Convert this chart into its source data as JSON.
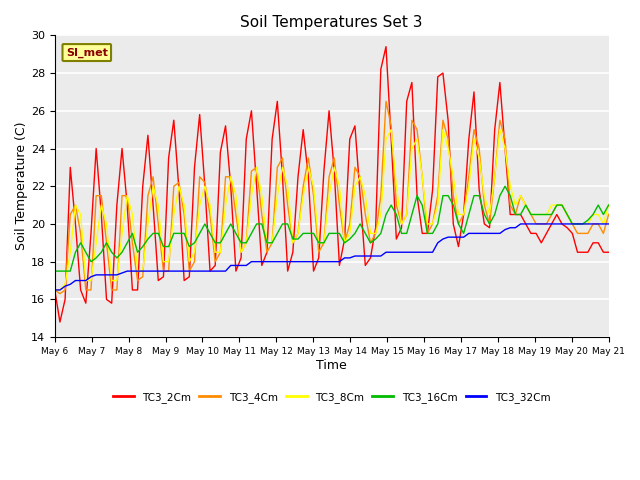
{
  "title": "Soil Temperatures Set 3",
  "xlabel": "Time",
  "ylabel": "Soil Temperature (C)",
  "ylim": [
    14,
    30
  ],
  "xlim": [
    0,
    15
  ],
  "yticks": [
    14,
    16,
    18,
    20,
    22,
    24,
    26,
    28,
    30
  ],
  "xtick_labels": [
    "May 6",
    "May 7",
    "May 8",
    "May 9",
    "May 10",
    "May 11",
    "May 12",
    "May 13",
    "May 14",
    "May 15",
    "May 16",
    "May 17",
    "May 18",
    "May 19",
    "May 20",
    "May 21"
  ],
  "annotation_text": "SI_met",
  "colors": {
    "TC3_2Cm": "#FF0000",
    "TC3_4Cm": "#FF8C00",
    "TC3_8Cm": "#FFFF00",
    "TC3_16Cm": "#00BB00",
    "TC3_32Cm": "#0000FF"
  },
  "legend_labels": [
    "TC3_2Cm",
    "TC3_4Cm",
    "TC3_8Cm",
    "TC3_16Cm",
    "TC3_32Cm"
  ],
  "background_color": "#EBEBEB",
  "title_fontsize": 11,
  "TC3_2Cm": [
    16.5,
    14.8,
    16.0,
    23.0,
    20.0,
    16.5,
    15.8,
    19.5,
    24.0,
    20.5,
    16.0,
    15.8,
    21.0,
    24.0,
    21.0,
    16.5,
    16.5,
    22.0,
    24.7,
    21.0,
    17.0,
    17.2,
    23.5,
    25.5,
    21.8,
    17.0,
    17.2,
    23.0,
    25.8,
    22.0,
    17.5,
    17.8,
    23.8,
    25.2,
    22.0,
    17.5,
    18.2,
    24.5,
    26.0,
    22.0,
    17.8,
    18.5,
    24.5,
    26.5,
    22.5,
    17.5,
    18.5,
    22.5,
    25.0,
    22.5,
    17.5,
    18.2,
    22.8,
    26.0,
    22.8,
    17.8,
    19.2,
    24.5,
    25.2,
    21.5,
    17.8,
    18.2,
    19.8,
    28.2,
    29.4,
    24.5,
    19.2,
    19.8,
    26.5,
    27.5,
    21.5,
    19.5,
    19.5,
    21.8,
    27.8,
    28.0,
    25.5,
    20.0,
    18.8,
    20.5,
    24.5,
    27.0,
    21.8,
    20.0,
    19.8,
    25.0,
    27.5,
    24.0,
    20.5,
    20.5,
    20.5,
    20.0,
    19.5,
    19.5,
    19.0,
    19.5,
    20.0,
    20.5,
    20.0,
    19.8,
    19.5,
    18.5,
    18.5,
    18.5,
    19.0,
    19.0,
    18.5,
    18.5
  ],
  "TC3_4Cm": [
    16.5,
    16.3,
    16.5,
    20.5,
    21.0,
    19.5,
    16.5,
    16.5,
    21.5,
    21.5,
    19.0,
    16.5,
    16.5,
    21.5,
    21.5,
    19.0,
    17.0,
    17.2,
    21.5,
    22.5,
    20.0,
    17.5,
    17.5,
    22.0,
    22.2,
    20.5,
    17.5,
    18.0,
    22.5,
    22.2,
    20.5,
    18.0,
    18.5,
    22.5,
    22.5,
    20.5,
    18.5,
    19.0,
    22.8,
    23.0,
    20.5,
    18.5,
    19.0,
    23.0,
    23.5,
    21.0,
    19.0,
    19.5,
    22.0,
    23.5,
    21.5,
    18.5,
    19.0,
    22.5,
    23.5,
    21.0,
    19.0,
    20.0,
    23.0,
    22.5,
    20.5,
    19.0,
    19.5,
    21.5,
    26.5,
    25.2,
    21.0,
    20.0,
    20.5,
    25.5,
    25.0,
    22.5,
    19.5,
    20.0,
    21.5,
    25.5,
    24.5,
    21.5,
    20.0,
    20.5,
    22.5,
    25.0,
    24.0,
    21.0,
    20.0,
    22.5,
    25.5,
    24.5,
    21.0,
    20.5,
    21.5,
    21.0,
    20.5,
    20.0,
    20.0,
    20.0,
    20.5,
    21.0,
    21.0,
    20.5,
    20.0,
    19.5,
    19.5,
    19.5,
    20.0,
    20.0,
    19.5,
    20.5
  ],
  "TC3_8Cm": [
    16.5,
    16.5,
    16.8,
    18.5,
    21.0,
    20.5,
    17.0,
    17.0,
    19.0,
    21.0,
    20.0,
    17.0,
    17.0,
    19.5,
    21.5,
    20.5,
    17.5,
    17.5,
    20.0,
    22.0,
    21.0,
    18.0,
    18.0,
    20.5,
    22.0,
    21.0,
    18.0,
    18.5,
    21.0,
    22.0,
    21.0,
    18.5,
    18.5,
    21.0,
    22.5,
    21.5,
    18.5,
    19.0,
    21.5,
    23.0,
    21.5,
    19.0,
    19.0,
    21.5,
    23.0,
    22.0,
    19.0,
    19.5,
    21.5,
    23.0,
    22.0,
    19.0,
    19.0,
    21.5,
    23.0,
    22.0,
    19.0,
    19.5,
    22.0,
    22.5,
    21.5,
    19.5,
    19.5,
    20.5,
    24.5,
    25.0,
    22.0,
    20.0,
    20.5,
    24.0,
    24.5,
    22.5,
    20.0,
    20.0,
    21.0,
    25.0,
    24.0,
    22.5,
    20.5,
    20.5,
    22.0,
    24.5,
    23.5,
    21.5,
    20.5,
    22.5,
    25.0,
    24.0,
    22.0,
    21.0,
    21.5,
    21.0,
    20.5,
    20.5,
    20.5,
    20.5,
    21.0,
    21.0,
    21.0,
    20.5,
    20.0,
    20.0,
    20.0,
    20.0,
    20.5,
    20.5,
    20.0,
    21.0
  ],
  "TC3_16Cm": [
    17.5,
    17.5,
    17.5,
    17.5,
    18.5,
    19.0,
    18.5,
    18.0,
    18.2,
    18.5,
    19.0,
    18.5,
    18.2,
    18.5,
    19.0,
    19.5,
    18.5,
    18.8,
    19.2,
    19.5,
    19.5,
    18.8,
    18.8,
    19.5,
    19.5,
    19.5,
    18.8,
    19.0,
    19.5,
    20.0,
    19.5,
    19.0,
    19.0,
    19.5,
    20.0,
    19.5,
    19.0,
    19.0,
    19.5,
    20.0,
    20.0,
    19.0,
    19.0,
    19.5,
    20.0,
    20.0,
    19.2,
    19.2,
    19.5,
    19.5,
    19.5,
    19.0,
    19.0,
    19.5,
    19.5,
    19.5,
    19.0,
    19.2,
    19.5,
    20.0,
    19.5,
    19.0,
    19.2,
    19.5,
    20.5,
    21.0,
    20.5,
    19.5,
    19.5,
    20.5,
    21.5,
    21.0,
    19.5,
    19.5,
    20.0,
    21.5,
    21.5,
    21.0,
    20.0,
    19.5,
    20.5,
    21.5,
    21.5,
    20.5,
    20.0,
    20.5,
    21.5,
    22.0,
    21.5,
    20.5,
    20.5,
    21.0,
    20.5,
    20.5,
    20.5,
    20.5,
    20.5,
    21.0,
    21.0,
    20.5,
    20.0,
    20.0,
    20.0,
    20.2,
    20.5,
    21.0,
    20.5,
    21.0
  ],
  "TC3_32Cm": [
    16.5,
    16.5,
    16.7,
    16.8,
    17.0,
    17.0,
    17.0,
    17.2,
    17.3,
    17.3,
    17.3,
    17.3,
    17.3,
    17.4,
    17.5,
    17.5,
    17.5,
    17.5,
    17.5,
    17.5,
    17.5,
    17.5,
    17.5,
    17.5,
    17.5,
    17.5,
    17.5,
    17.5,
    17.5,
    17.5,
    17.5,
    17.5,
    17.5,
    17.5,
    17.8,
    17.8,
    17.8,
    17.8,
    18.0,
    18.0,
    18.0,
    18.0,
    18.0,
    18.0,
    18.0,
    18.0,
    18.0,
    18.0,
    18.0,
    18.0,
    18.0,
    18.0,
    18.0,
    18.0,
    18.0,
    18.0,
    18.2,
    18.2,
    18.3,
    18.3,
    18.3,
    18.3,
    18.3,
    18.3,
    18.5,
    18.5,
    18.5,
    18.5,
    18.5,
    18.5,
    18.5,
    18.5,
    18.5,
    18.5,
    19.0,
    19.2,
    19.3,
    19.3,
    19.3,
    19.3,
    19.5,
    19.5,
    19.5,
    19.5,
    19.5,
    19.5,
    19.5,
    19.7,
    19.8,
    19.8,
    20.0,
    20.0,
    20.0,
    20.0,
    20.0,
    20.0,
    20.0,
    20.0,
    20.0,
    20.0,
    20.0,
    20.0,
    20.0,
    20.0,
    20.0,
    20.0,
    20.0,
    20.0
  ],
  "n_points": 108
}
